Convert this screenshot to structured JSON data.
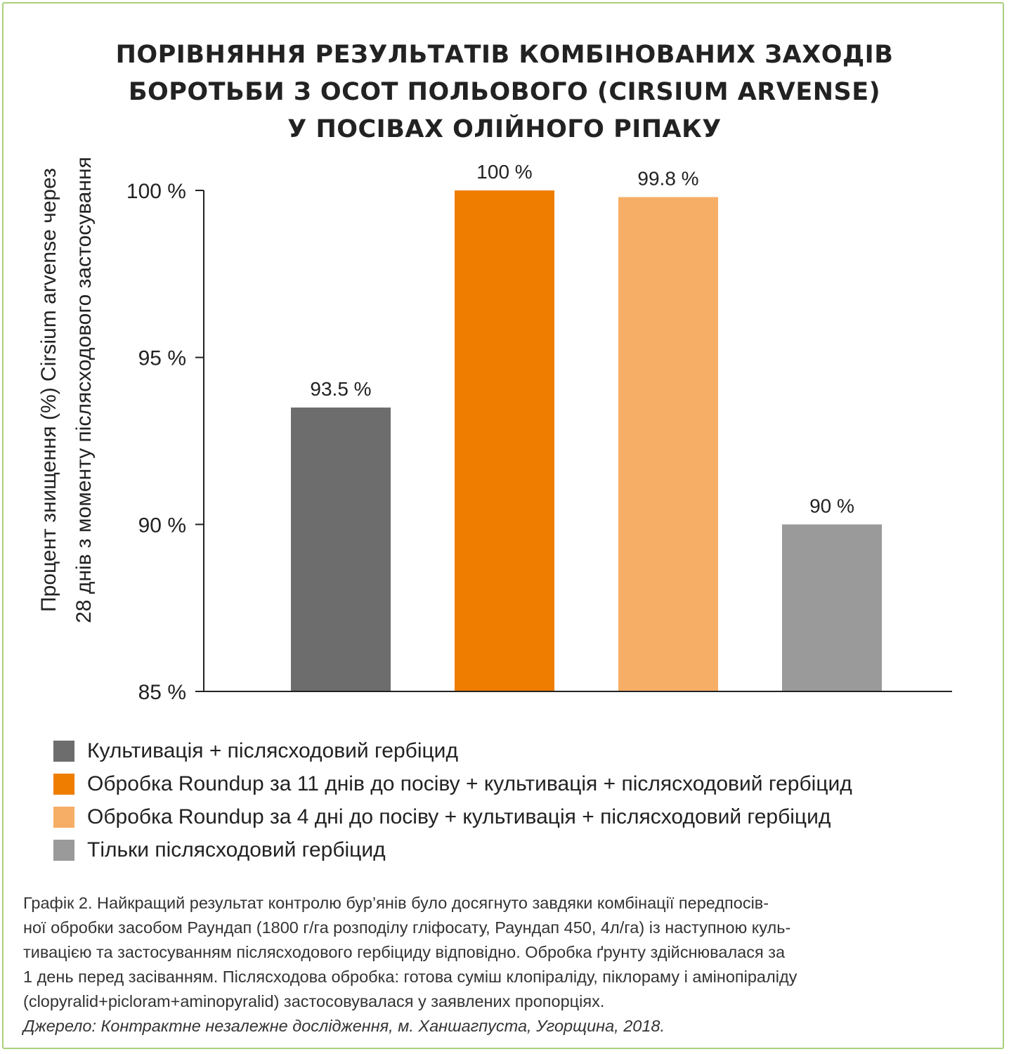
{
  "chart_data": {
    "type": "bar",
    "title": [
      "ПОРІВНЯННЯ РЕЗУЛЬТАТІВ КОМБІНОВАНИХ ЗАХОДІВ",
      "БОРОТЬБИ З ОСОТ ПОЛЬОВОГО (CIRSIUM ARVENSE)",
      "У ПОСІВАХ ОЛІЙНОГО РІПАКУ"
    ],
    "ylabel": [
      "Процент знищення (%) Cirsium arvense через",
      "28 днів з моменту післясходового застосування"
    ],
    "ylim": [
      85,
      100
    ],
    "yticks": [
      {
        "value": 100,
        "label": "100 %"
      },
      {
        "value": 95,
        "label": "95 %"
      },
      {
        "value": 90,
        "label": "90 %"
      },
      {
        "value": 85,
        "label": "85 %"
      }
    ],
    "grid": false,
    "legend_position": "bottom",
    "series": [
      {
        "name": "Культивація + післясходовий гербіцид",
        "value": 93.5,
        "label": "93.5 %",
        "color": "#6d6d6d"
      },
      {
        "name": "Обробка Roundup за 11 днів до посіву + культивація + післясходовий гербіцид",
        "value": 100,
        "label": "100 %",
        "color": "#ef7d00"
      },
      {
        "name": "Обробка Roundup за 4 дні до посіву + культивація + післясходовий гербіцид",
        "value": 99.8,
        "label": "99.8 %",
        "color": "#f6ae66"
      },
      {
        "name": "Тільки післясходовий гербіцид",
        "value": 90,
        "label": "90 %",
        "color": "#9a9a9a"
      }
    ]
  },
  "caption": {
    "lines": [
      "Графік 2. Найкращий результат контролю бур’янів було досягнуто завдяки комбінації передпосів-",
      "ної обробки засобом Раундап (1800 г/га розподілу гліфосату, Раундап 450, 4л/га) із наступною куль-",
      "тивацією та застосуванням післясходового гербіциду відповідно. Обробка ґрунту здійснювалася за",
      "1 день перед засіванням. Післясходова обробка: готова суміш клопіраліду, піклораму і амінопіраліду",
      "(clopyralid+picloram+aminopyralid) застосовувалася у заявлених пропорціях."
    ],
    "source": "Джерело: Контрактне незалежне дослідження, м. Ханшагпуста, Угорщина, 2018."
  },
  "colors": {
    "frame_border": "#a9cf7f",
    "text": "#222222"
  }
}
